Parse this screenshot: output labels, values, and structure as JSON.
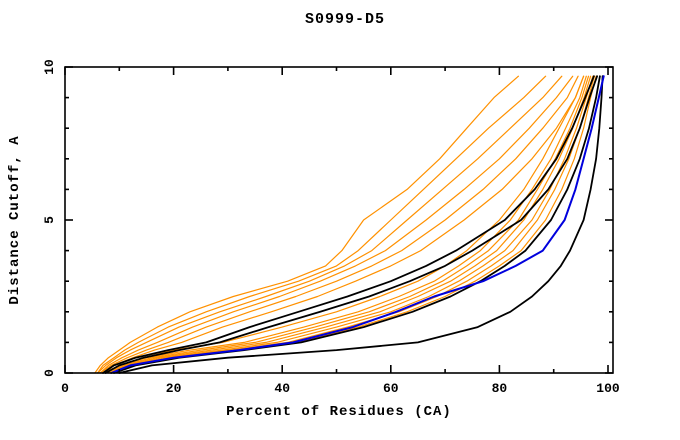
{
  "title": "S0999-D5",
  "axes": {
    "x": {
      "label": "Percent of Residues (CA)",
      "min": 0,
      "max": 100,
      "major_ticks": [
        0,
        20,
        40,
        60,
        80,
        100
      ],
      "minor_ticks": [
        10,
        30,
        50,
        70,
        90
      ]
    },
    "y": {
      "label": "Distance Cutoff, A",
      "min": 0,
      "max": 10,
      "major_ticks": [
        0,
        5,
        10
      ],
      "minor_ticks": [
        1,
        2,
        3,
        4,
        6,
        7,
        8,
        9
      ]
    }
  },
  "colors": {
    "background": "#ffffff",
    "frame": "#000000",
    "orange": "#ff9100",
    "black": "#000000",
    "blue": "#0000dd"
  },
  "chart_data": {
    "type": "line",
    "title": "S0999-D5",
    "xlabel": "Percent of Residues (CA)",
    "ylabel": "Distance Cutoff, A",
    "xlim": [
      0,
      100
    ],
    "ylim": [
      0,
      10
    ],
    "grid": false,
    "legend": "none",
    "x_meaning": "percent of CA residues under cutoff",
    "y_meaning": "distance cutoff in angstroms",
    "cutoffs": [
      0,
      0.25,
      0.5,
      0.75,
      1,
      1.5,
      2,
      2.5,
      3,
      3.5,
      4,
      5,
      6,
      7,
      8,
      9,
      9.7
    ],
    "series": [
      {
        "name": "orange-model-1",
        "color": "orange",
        "width": 1.2,
        "percents": [
          5.5,
          6.5,
          8,
          10,
          12,
          17,
          23,
          31,
          41,
          48,
          51,
          55,
          63,
          69,
          74,
          79,
          83.5
        ]
      },
      {
        "name": "orange-model-2",
        "color": "orange",
        "width": 1.2,
        "percents": [
          6,
          7,
          9,
          11,
          13.5,
          19,
          26,
          34,
          43,
          50,
          54,
          60,
          66,
          72,
          78,
          84.5,
          88.5
        ]
      },
      {
        "name": "orange-model-3",
        "color": "orange",
        "width": 1.2,
        "percents": [
          6,
          7.5,
          9.5,
          12,
          15,
          21,
          28.5,
          37,
          45,
          51.5,
          56.5,
          63,
          69.5,
          76,
          82,
          88,
          91.5
        ]
      },
      {
        "name": "orange-model-4",
        "color": "orange",
        "width": 1.2,
        "percents": [
          6.5,
          8,
          10.5,
          13.5,
          17,
          23.5,
          31,
          39.5,
          47,
          53.5,
          59,
          66.5,
          73.5,
          80,
          85.5,
          90.5,
          93.5
        ]
      },
      {
        "name": "orange-model-5",
        "color": "orange",
        "width": 1.2,
        "percents": [
          6.5,
          8.5,
          11.5,
          15,
          19,
          26,
          34,
          42.5,
          50,
          56.5,
          62,
          70,
          77,
          83,
          88,
          92.5,
          94.5
        ]
      },
      {
        "name": "orange-model-6",
        "color": "orange",
        "width": 1.2,
        "percents": [
          7,
          9,
          12.5,
          16.5,
          21.5,
          29,
          38,
          46.5,
          53.5,
          60,
          65.5,
          73.5,
          80.5,
          86,
          90.5,
          94,
          95.5
        ]
      },
      {
        "name": "orange-model-7",
        "color": "orange",
        "width": 1.2,
        "percents": [
          7,
          9,
          13,
          20,
          29,
          40,
          50,
          58,
          65,
          70,
          74,
          80,
          84.5,
          88,
          91,
          94,
          95.5
        ]
      },
      {
        "name": "orange-model-8",
        "color": "orange",
        "width": 1.2,
        "percents": [
          7,
          10,
          15,
          23,
          33,
          44,
          54,
          61.5,
          68,
          72.5,
          76.5,
          82,
          86,
          89.5,
          92.2,
          94.8,
          96
        ]
      },
      {
        "name": "orange-model-9",
        "color": "orange",
        "width": 1.2,
        "percents": [
          7.5,
          10.5,
          16,
          25,
          35,
          46,
          56,
          63.5,
          69.5,
          74,
          78,
          83.5,
          87,
          90.3,
          93,
          95.2,
          96.4
        ]
      },
      {
        "name": "orange-model-10",
        "color": "orange",
        "width": 1.2,
        "percents": [
          8,
          11,
          17,
          27,
          37,
          48,
          58,
          65,
          71,
          75.5,
          79.5,
          84.5,
          88,
          91,
          93.5,
          95.6,
          96.8
        ]
      },
      {
        "name": "orange-model-11",
        "color": "orange",
        "width": 1.2,
        "percents": [
          8,
          11.5,
          18,
          29,
          39,
          50,
          60,
          67,
          72.5,
          77,
          81,
          86,
          89.3,
          92,
          94.2,
          96,
          97.2
        ]
      },
      {
        "name": "orange-model-12",
        "color": "orange",
        "width": 1.2,
        "percents": [
          8.5,
          12,
          19,
          30.5,
          41,
          52,
          61.5,
          68.5,
          74,
          78.5,
          82.5,
          87,
          90.2,
          92.8,
          94.8,
          96.4,
          97.5
        ]
      },
      {
        "name": "orange-model-13",
        "color": "orange",
        "width": 1.2,
        "percents": [
          9,
          12.5,
          20,
          32,
          42.5,
          54,
          63,
          70,
          75.5,
          80,
          84,
          88.5,
          91.5,
          93.8,
          95.5,
          96.8,
          97.8
        ]
      },
      {
        "name": "black-model-1",
        "color": "black",
        "width": 1.8,
        "percents": [
          7,
          9,
          13,
          19,
          26,
          34,
          43,
          52,
          60,
          66.5,
          72,
          81,
          86.5,
          90.5,
          93.4,
          95.8,
          97.4
        ]
      },
      {
        "name": "black-model-2",
        "color": "black",
        "width": 1.8,
        "percents": [
          7.5,
          10,
          14.5,
          21,
          28.5,
          37.5,
          47,
          56,
          63.5,
          70,
          75,
          84,
          89,
          92.5,
          94.8,
          96.6,
          98
        ]
      },
      {
        "name": "black-model-3",
        "color": "black",
        "width": 1.8,
        "percents": [
          9,
          13,
          21,
          33,
          43.5,
          55,
          64,
          71,
          76.5,
          81,
          84.8,
          89.5,
          92.5,
          94.8,
          96.5,
          97.8,
          98.5
        ]
      },
      {
        "name": "black-model-4",
        "color": "black",
        "width": 1.8,
        "percents": [
          10,
          16,
          30,
          50,
          65,
          76,
          82,
          86,
          89,
          91.3,
          93,
          95.5,
          96.8,
          97.8,
          98.4,
          98.8,
          99
        ]
      },
      {
        "name": "blue-model",
        "color": "blue",
        "width": 2.0,
        "percents": [
          8.5,
          12,
          20,
          32,
          42,
          53,
          61,
          68,
          77,
          83,
          88,
          92,
          94,
          95.5,
          97,
          98.3,
          99.2
        ]
      }
    ]
  },
  "layout_hints": {
    "tick_style": "inward on all four frame edges",
    "y_tick_labels_rotated": "90 degrees counter-clockwise"
  }
}
